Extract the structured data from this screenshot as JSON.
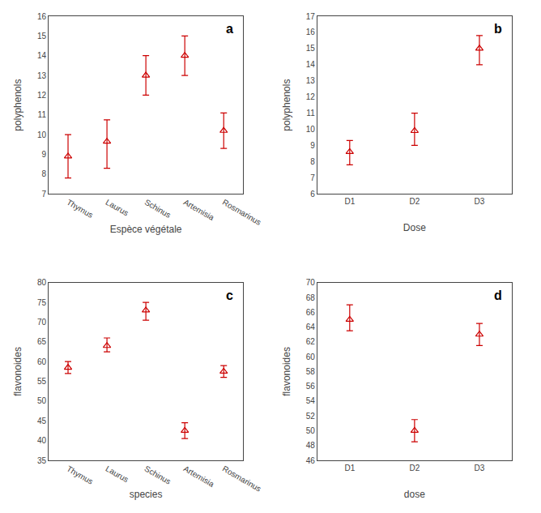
{
  "chart_data": [
    {
      "type": "scatter",
      "annotation": "a",
      "xlabel": "Espèce végétale",
      "ylabel": "polyphenols",
      "categories": [
        "Thymus",
        "Laurus",
        "Schinus",
        "Artemisia",
        "Rosmarinus"
      ],
      "values": [
        8.9,
        9.65,
        13.0,
        14.0,
        10.2
      ],
      "err_low": [
        1.1,
        1.35,
        1.0,
        1.0,
        0.9
      ],
      "err_high": [
        1.1,
        1.1,
        1.0,
        1.0,
        0.9
      ],
      "ylim": [
        7,
        16
      ],
      "yticks": [
        7,
        8,
        9,
        10,
        11,
        12,
        13,
        14,
        15,
        16
      ],
      "color": "#cc0000",
      "marker": "triangle",
      "grid": false
    },
    {
      "type": "scatter",
      "annotation": "b",
      "xlabel": "Dose",
      "ylabel": "polyphenols",
      "categories": [
        "D1",
        "D2",
        "D3"
      ],
      "values": [
        8.6,
        9.9,
        15.0
      ],
      "err_low": [
        0.8,
        0.9,
        1.0
      ],
      "err_high": [
        0.7,
        1.1,
        0.8
      ],
      "ylim": [
        6,
        17
      ],
      "yticks": [
        6,
        7,
        8,
        9,
        10,
        11,
        12,
        13,
        14,
        15,
        16,
        17
      ],
      "color": "#cc0000",
      "marker": "triangle",
      "grid": false
    },
    {
      "type": "scatter",
      "annotation": "c",
      "xlabel": "species",
      "ylabel": "flavonoides",
      "categories": [
        "Thymus",
        "Laurus",
        "Schinus",
        "Artemisia",
        "Rosmarinus"
      ],
      "values": [
        58.5,
        64.0,
        73.0,
        42.5,
        57.5
      ],
      "err_low": [
        1.5,
        1.5,
        2.5,
        2.0,
        1.5
      ],
      "err_high": [
        1.5,
        2.0,
        2.0,
        2.0,
        1.5
      ],
      "ylim": [
        35,
        80
      ],
      "yticks": [
        35,
        40,
        45,
        50,
        55,
        60,
        65,
        70,
        75,
        80
      ],
      "color": "#cc0000",
      "marker": "triangle",
      "grid": false
    },
    {
      "type": "scatter",
      "annotation": "d",
      "xlabel": "dose",
      "ylabel": "flavonoides",
      "categories": [
        "D1",
        "D2",
        "D3"
      ],
      "values": [
        65.0,
        50.0,
        63.0
      ],
      "err_low": [
        1.5,
        1.5,
        1.5
      ],
      "err_high": [
        2.0,
        1.5,
        1.5
      ],
      "ylim": [
        46,
        70
      ],
      "yticks": [
        46,
        48,
        50,
        52,
        54,
        56,
        58,
        60,
        62,
        64,
        66,
        68,
        70
      ],
      "color": "#cc0000",
      "marker": "triangle",
      "grid": false
    }
  ]
}
